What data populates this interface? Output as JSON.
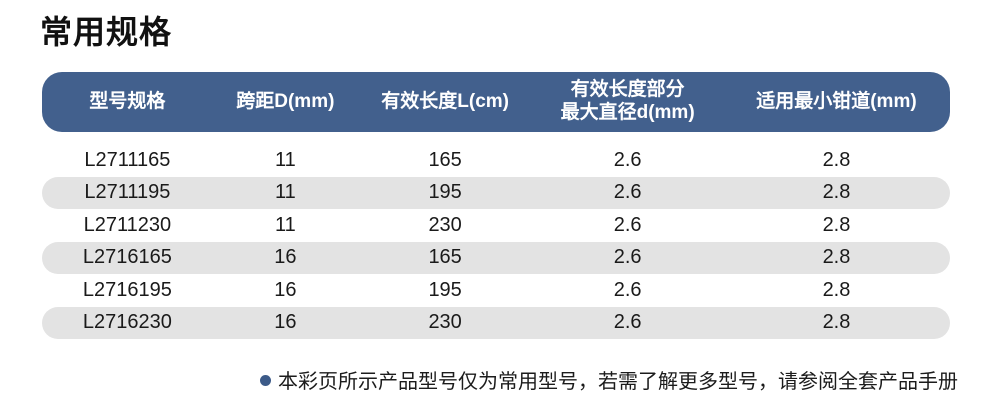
{
  "page": {
    "title": "常用规格"
  },
  "table": {
    "columns": [
      {
        "label": "型号规格"
      },
      {
        "label": "跨距D(mm)"
      },
      {
        "label": "有效长度L(cm)"
      },
      {
        "label_line1": "有效长度部分",
        "label_line2": "最大直径d(mm)"
      },
      {
        "label": "适用最小钳道(mm)"
      }
    ],
    "rows": [
      [
        "L2711165",
        "11",
        "165",
        "2.6",
        "2.8"
      ],
      [
        "L2711195",
        "11",
        "195",
        "2.6",
        "2.8"
      ],
      [
        "L2711230",
        "11",
        "230",
        "2.6",
        "2.8"
      ],
      [
        "L2716165",
        "16",
        "165",
        "2.6",
        "2.8"
      ],
      [
        "L2716195",
        "16",
        "195",
        "2.6",
        "2.8"
      ],
      [
        "L2716230",
        "16",
        "230",
        "2.6",
        "2.8"
      ]
    ]
  },
  "footnote": {
    "text": "本彩页所示产品型号仅为常用型号，若需了解更多型号，请参阅全套产品手册"
  },
  "colors": {
    "header_bg": "#42608D",
    "header_text": "#ffffff",
    "row_alt_bg": "#e3e3e3",
    "body_text": "#1a1a1a",
    "bullet": "#3c5a88"
  }
}
